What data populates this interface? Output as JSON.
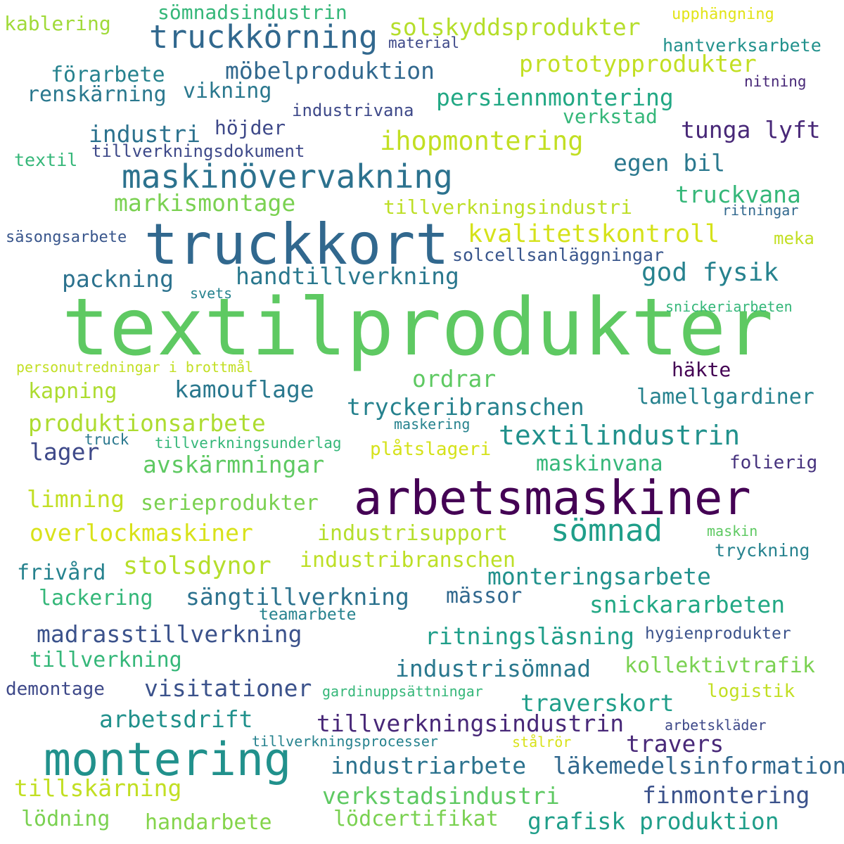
{
  "words": [
    {
      "text": "textilprodukter",
      "color": "#5ec962"
    },
    {
      "text": "truckkort",
      "color": "#31688e"
    },
    {
      "text": "arbetsmaskiner",
      "color": "#440154"
    },
    {
      "text": "montering",
      "color": "#21918c"
    },
    {
      "text": "maskinövervakning",
      "color": "#2c728e"
    },
    {
      "text": "truckkörning",
      "color": "#31688e"
    },
    {
      "text": "sömnad",
      "color": "#1f9e89"
    },
    {
      "text": "textilindustrin",
      "color": "#21918c"
    },
    {
      "text": "kvalitetskontroll",
      "color": "#d5e21a"
    },
    {
      "text": "ihopmontering",
      "color": "#c2df23"
    },
    {
      "text": "god fysik",
      "color": "#26828e"
    },
    {
      "text": "handtillverkning",
      "color": "#2a788e"
    },
    {
      "text": "packning",
      "color": "#2c728e"
    },
    {
      "text": "produktionsarbete",
      "color": "#addc30"
    },
    {
      "text": "kamouflage",
      "color": "#2a788e"
    },
    {
      "text": "avskärmningar",
      "color": "#5ec962"
    },
    {
      "text": "overlockmaskiner",
      "color": "#d8e219"
    },
    {
      "text": "stolsdynor",
      "color": "#b5de2b"
    },
    {
      "text": "monteringsarbete",
      "color": "#21918c"
    },
    {
      "text": "sängtillverkning",
      "color": "#2c728e"
    },
    {
      "text": "madrasstillverkning",
      "color": "#3b528b"
    },
    {
      "text": "snickararbeten",
      "color": "#22a884"
    },
    {
      "text": "ritningsläsning",
      "color": "#1f9e89"
    },
    {
      "text": "industrisömnad",
      "color": "#2a788e"
    },
    {
      "text": "tillverkningsindustrin",
      "color": "#482878"
    },
    {
      "text": "verkstadsindustri",
      "color": "#5ec962"
    },
    {
      "text": "industriarbete",
      "color": "#2c728e"
    },
    {
      "text": "läkemedelsinformation",
      "color": "#31688e"
    },
    {
      "text": "tillskärning",
      "color": "#c2df23"
    },
    {
      "text": "visitationer",
      "color": "#3b528b"
    },
    {
      "text": "arbetsdrift",
      "color": "#21918c"
    },
    {
      "text": "traverskort",
      "color": "#1f9e89"
    },
    {
      "text": "solskyddsprodukter",
      "color": "#b5de2b"
    },
    {
      "text": "möbelproduktion",
      "color": "#31688e"
    },
    {
      "text": "persiennmontering",
      "color": "#22a884"
    },
    {
      "text": "prototypprodukter",
      "color": "#c2df23"
    },
    {
      "text": "industri",
      "color": "#2c728e"
    },
    {
      "text": "markismontage",
      "color": "#7ad151"
    },
    {
      "text": "tillverkningsindustri",
      "color": "#bddf26"
    },
    {
      "text": "egen bil",
      "color": "#2a788e"
    },
    {
      "text": "tunga lyft",
      "color": "#482878"
    },
    {
      "text": "truckvana",
      "color": "#35b779"
    },
    {
      "text": "tryckeribranschen",
      "color": "#26828e"
    },
    {
      "text": "ordrar",
      "color": "#5ec962"
    },
    {
      "text": "lamellgardiner",
      "color": "#26828e"
    },
    {
      "text": "häkte",
      "color": "#440154"
    },
    {
      "text": "maskinvana",
      "color": "#35b779"
    },
    {
      "text": "limning",
      "color": "#c2df23"
    },
    {
      "text": "serieprodukter",
      "color": "#7ad151"
    },
    {
      "text": "industrisupport",
      "color": "#b5de2b"
    },
    {
      "text": "industribranschen",
      "color": "#bddf26"
    },
    {
      "text": "lager",
      "color": "#3e4989"
    },
    {
      "text": "kapning",
      "color": "#addc30"
    },
    {
      "text": "frivård",
      "color": "#26828e"
    },
    {
      "text": "lackering",
      "color": "#35b779"
    },
    {
      "text": "tillverkning",
      "color": "#35b779"
    },
    {
      "text": "finmontering",
      "color": "#3b528b"
    },
    {
      "text": "kollektivtrafik",
      "color": "#7ad151"
    },
    {
      "text": "travers",
      "color": "#482878"
    },
    {
      "text": "grafisk produktion",
      "color": "#1f9e89"
    },
    {
      "text": "lödcertifikat",
      "color": "#7ad151"
    },
    {
      "text": "handarbete",
      "color": "#84d44b"
    },
    {
      "text": "lödning",
      "color": "#7ad151"
    },
    {
      "text": "mässor",
      "color": "#31688e"
    },
    {
      "text": "vikning",
      "color": "#2a788e"
    },
    {
      "text": "förarbete",
      "color": "#26828e"
    },
    {
      "text": "renskärning",
      "color": "#2a788e"
    },
    {
      "text": "sömnadsindustrin",
      "color": "#35b779"
    },
    {
      "text": "verkstad",
      "color": "#35b779"
    },
    {
      "text": "höjder",
      "color": "#3e4989"
    },
    {
      "text": "kablering",
      "color": "#a0da39"
    },
    {
      "text": "folierig",
      "color": "#46327e"
    },
    {
      "text": "plåtslageri",
      "color": "#d5e21a"
    },
    {
      "text": "hantverksarbete",
      "color": "#21918c"
    },
    {
      "text": "industrivana",
      "color": "#3e4989"
    },
    {
      "text": "tillverkningsdokument",
      "color": "#3e4989"
    },
    {
      "text": "textil",
      "color": "#35b779"
    },
    {
      "text": "tryckning",
      "color": "#26828e"
    },
    {
      "text": "solcellsanläggningar",
      "color": "#39568c"
    },
    {
      "text": "teamarbete",
      "color": "#26828e"
    },
    {
      "text": "hygienprodukter",
      "color": "#3b528b"
    },
    {
      "text": "logistik",
      "color": "#c2df23"
    },
    {
      "text": "demontage",
      "color": "#3e4989"
    },
    {
      "text": "upphängning",
      "color": "#e2e418"
    },
    {
      "text": "material",
      "color": "#3e4989"
    },
    {
      "text": "nitning",
      "color": "#482878"
    },
    {
      "text": "ritningar",
      "color": "#31688e"
    },
    {
      "text": "säsongsarbete",
      "color": "#39568c"
    },
    {
      "text": "meka",
      "color": "#c2df23"
    },
    {
      "text": "svets",
      "color": "#26828e"
    },
    {
      "text": "snickeriarbeten",
      "color": "#35b779"
    },
    {
      "text": "personutredningar i brottmål",
      "color": "#c2df23"
    },
    {
      "text": "maskering",
      "color": "#26828e"
    },
    {
      "text": "truck",
      "color": "#2a788e"
    },
    {
      "text": "tillverkningsunderlag",
      "color": "#35b779"
    },
    {
      "text": "maskin",
      "color": "#5ec962"
    },
    {
      "text": "arbetskläder",
      "color": "#3e4989"
    },
    {
      "text": "stålrör",
      "color": "#d8e219"
    },
    {
      "text": "tillverkningsprocesser",
      "color": "#26828e"
    },
    {
      "text": "gardinuppsättningar",
      "color": "#35b779"
    }
  ]
}
